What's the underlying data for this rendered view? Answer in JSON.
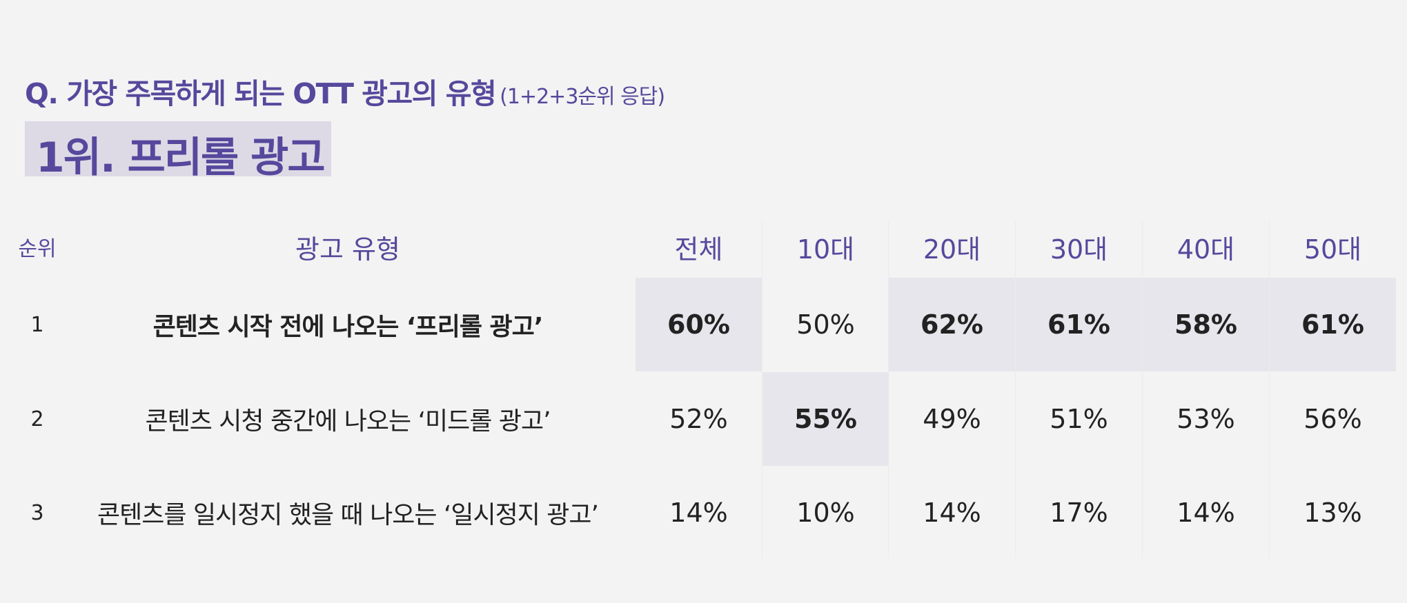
{
  "question": {
    "text": "Q. 가장 주목하게 되는 OTT 광고의 유형",
    "note": "(1+2+3순위 응답)"
  },
  "top_rank": "1위. 프리롤 광고",
  "chart_data": {
    "type": "table",
    "columns": [
      "순위",
      "광고 유형",
      "전체",
      "10대",
      "20대",
      "30대",
      "40대",
      "50대"
    ],
    "rows": [
      {
        "rank": "1",
        "type": "콘텐츠 시작 전에 나오는 ‘프리롤 광고’",
        "values": [
          "60%",
          "50%",
          "62%",
          "61%",
          "58%",
          "61%"
        ],
        "highlighted": [
          true,
          false,
          true,
          true,
          true,
          true
        ]
      },
      {
        "rank": "2",
        "type": "콘텐츠 시청 중간에 나오는 ‘미드롤 광고’",
        "values": [
          "52%",
          "55%",
          "49%",
          "51%",
          "53%",
          "56%"
        ],
        "highlighted": [
          false,
          true,
          false,
          false,
          false,
          false
        ]
      },
      {
        "rank": "3",
        "type": "콘텐츠를 일시정지 했을 때 나오는 ‘일시정지 광고’",
        "values": [
          "14%",
          "10%",
          "14%",
          "17%",
          "14%",
          "13%"
        ],
        "highlighted": [
          false,
          false,
          false,
          false,
          false,
          false
        ]
      }
    ]
  },
  "colors": {
    "accent": "#56489c",
    "highlight": "#e7e6ec",
    "banner": "#dddae6",
    "background": "#f3f3f3"
  }
}
